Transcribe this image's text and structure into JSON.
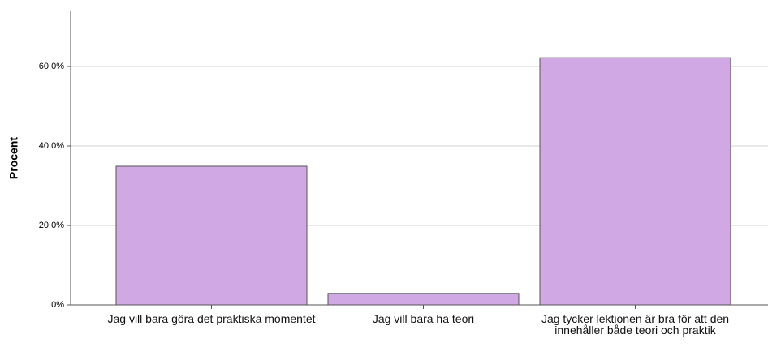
{
  "chart_data": {
    "type": "bar",
    "y_label": "Procent",
    "categories": [
      "Jag vill bara göra det praktiska momentet",
      "Jag vill bara ha teori",
      "Jag tycker lektionen är bra för att den innehåller både teori och praktik"
    ],
    "values": [
      34.9,
      2.9,
      62.2
    ],
    "color": "#cfa8e4",
    "ylim": [
      0,
      74
    ],
    "yticks": [
      {
        "value": 0,
        "label": ",0%"
      },
      {
        "value": 20,
        "label": "20,0%"
      },
      {
        "value": 40,
        "label": "40,0%"
      },
      {
        "value": 60,
        "label": "60,0%"
      }
    ],
    "grid": true
  }
}
